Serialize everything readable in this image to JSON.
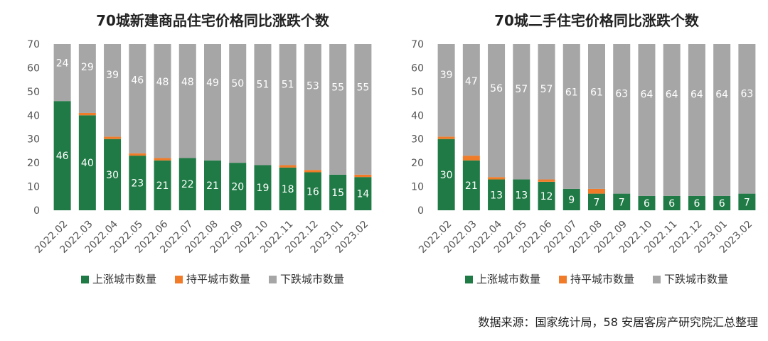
{
  "colors": {
    "up": "#1f7a45",
    "flat": "#f07c2a",
    "down": "#a6a6a6"
  },
  "chart_data": [
    {
      "type": "bar",
      "stacked": true,
      "title": "70城新建商品住宅价格同比涨跌个数",
      "categories": [
        "2022.02",
        "2022.03",
        "2022.04",
        "2022.05",
        "2022.06",
        "2022.07",
        "2022.08",
        "2022.09",
        "2022.10",
        "2022.11",
        "2022.12",
        "2023.01",
        "2023.02"
      ],
      "series": [
        {
          "name": "上涨城市数量",
          "values": [
            46,
            40,
            30,
            23,
            21,
            22,
            21,
            20,
            19,
            18,
            16,
            15,
            14
          ]
        },
        {
          "name": "持平城市数量",
          "values": [
            0,
            1,
            1,
            1,
            1,
            0,
            0,
            0,
            0,
            1,
            1,
            0,
            1
          ]
        },
        {
          "name": "下跌城市数量",
          "values": [
            24,
            29,
            39,
            46,
            48,
            48,
            49,
            50,
            51,
            51,
            53,
            55,
            55
          ]
        }
      ],
      "ylim": [
        0,
        70
      ],
      "yticks": [
        0,
        10,
        20,
        30,
        40,
        50,
        60,
        70
      ],
      "legend": "bottom"
    },
    {
      "type": "bar",
      "stacked": true,
      "title": "70城二手住宅价格同比涨跌个数",
      "categories": [
        "2022.02",
        "2022.03",
        "2022.04",
        "2022.05",
        "2022.06",
        "2022.07",
        "2022.08",
        "2022.09",
        "2022.10",
        "2022.11",
        "2022.12",
        "2023.01",
        "2023.02"
      ],
      "series": [
        {
          "name": "上涨城市数量",
          "values": [
            30,
            21,
            13,
            13,
            12,
            9,
            7,
            7,
            6,
            6,
            6,
            6,
            7
          ]
        },
        {
          "name": "持平城市数量",
          "values": [
            1,
            2,
            1,
            0,
            1,
            0,
            2,
            0,
            0,
            0,
            0,
            0,
            0
          ]
        },
        {
          "name": "下跌城市数量",
          "values": [
            39,
            47,
            56,
            57,
            57,
            61,
            61,
            63,
            64,
            64,
            64,
            64,
            63
          ]
        }
      ],
      "ylim": [
        0,
        70
      ],
      "yticks": [
        0,
        10,
        20,
        30,
        40,
        50,
        60,
        70
      ],
      "legend": "bottom"
    }
  ],
  "source_text": "数据来源：国家统计局，58 安居客房产研究院汇总整理"
}
